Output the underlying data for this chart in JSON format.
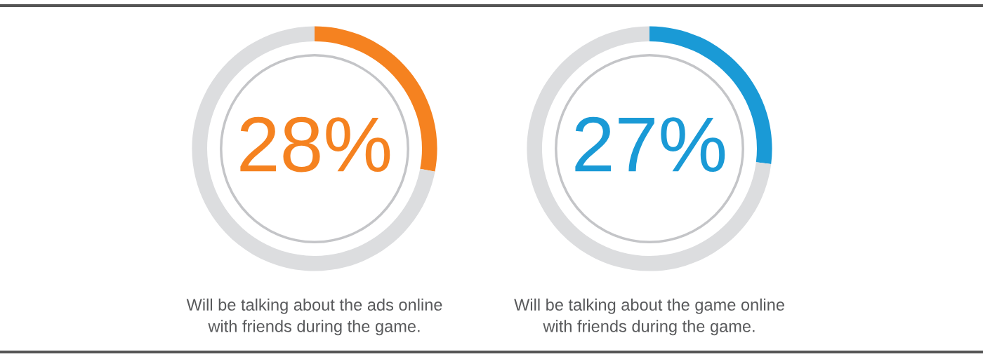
{
  "chart_data": [
    {
      "type": "donut",
      "title": "Will be talking about the ads online\nwith friends during the game.",
      "categories": [
        null,
        null
      ],
      "values": [
        28,
        72
      ],
      "colors": [
        "#f58220",
        "#dcdddf"
      ],
      "value_labels": [
        "28%",
        null
      ]
    },
    {
      "type": "donut",
      "title": "Will be talking about the game online\nwith friends during the game.",
      "categories": [
        null,
        null
      ],
      "values": [
        27,
        73
      ],
      "colors": [
        "#1a9ad6",
        "#dcdddf"
      ],
      "value_labels": [
        "27%",
        null
      ]
    }
  ]
}
